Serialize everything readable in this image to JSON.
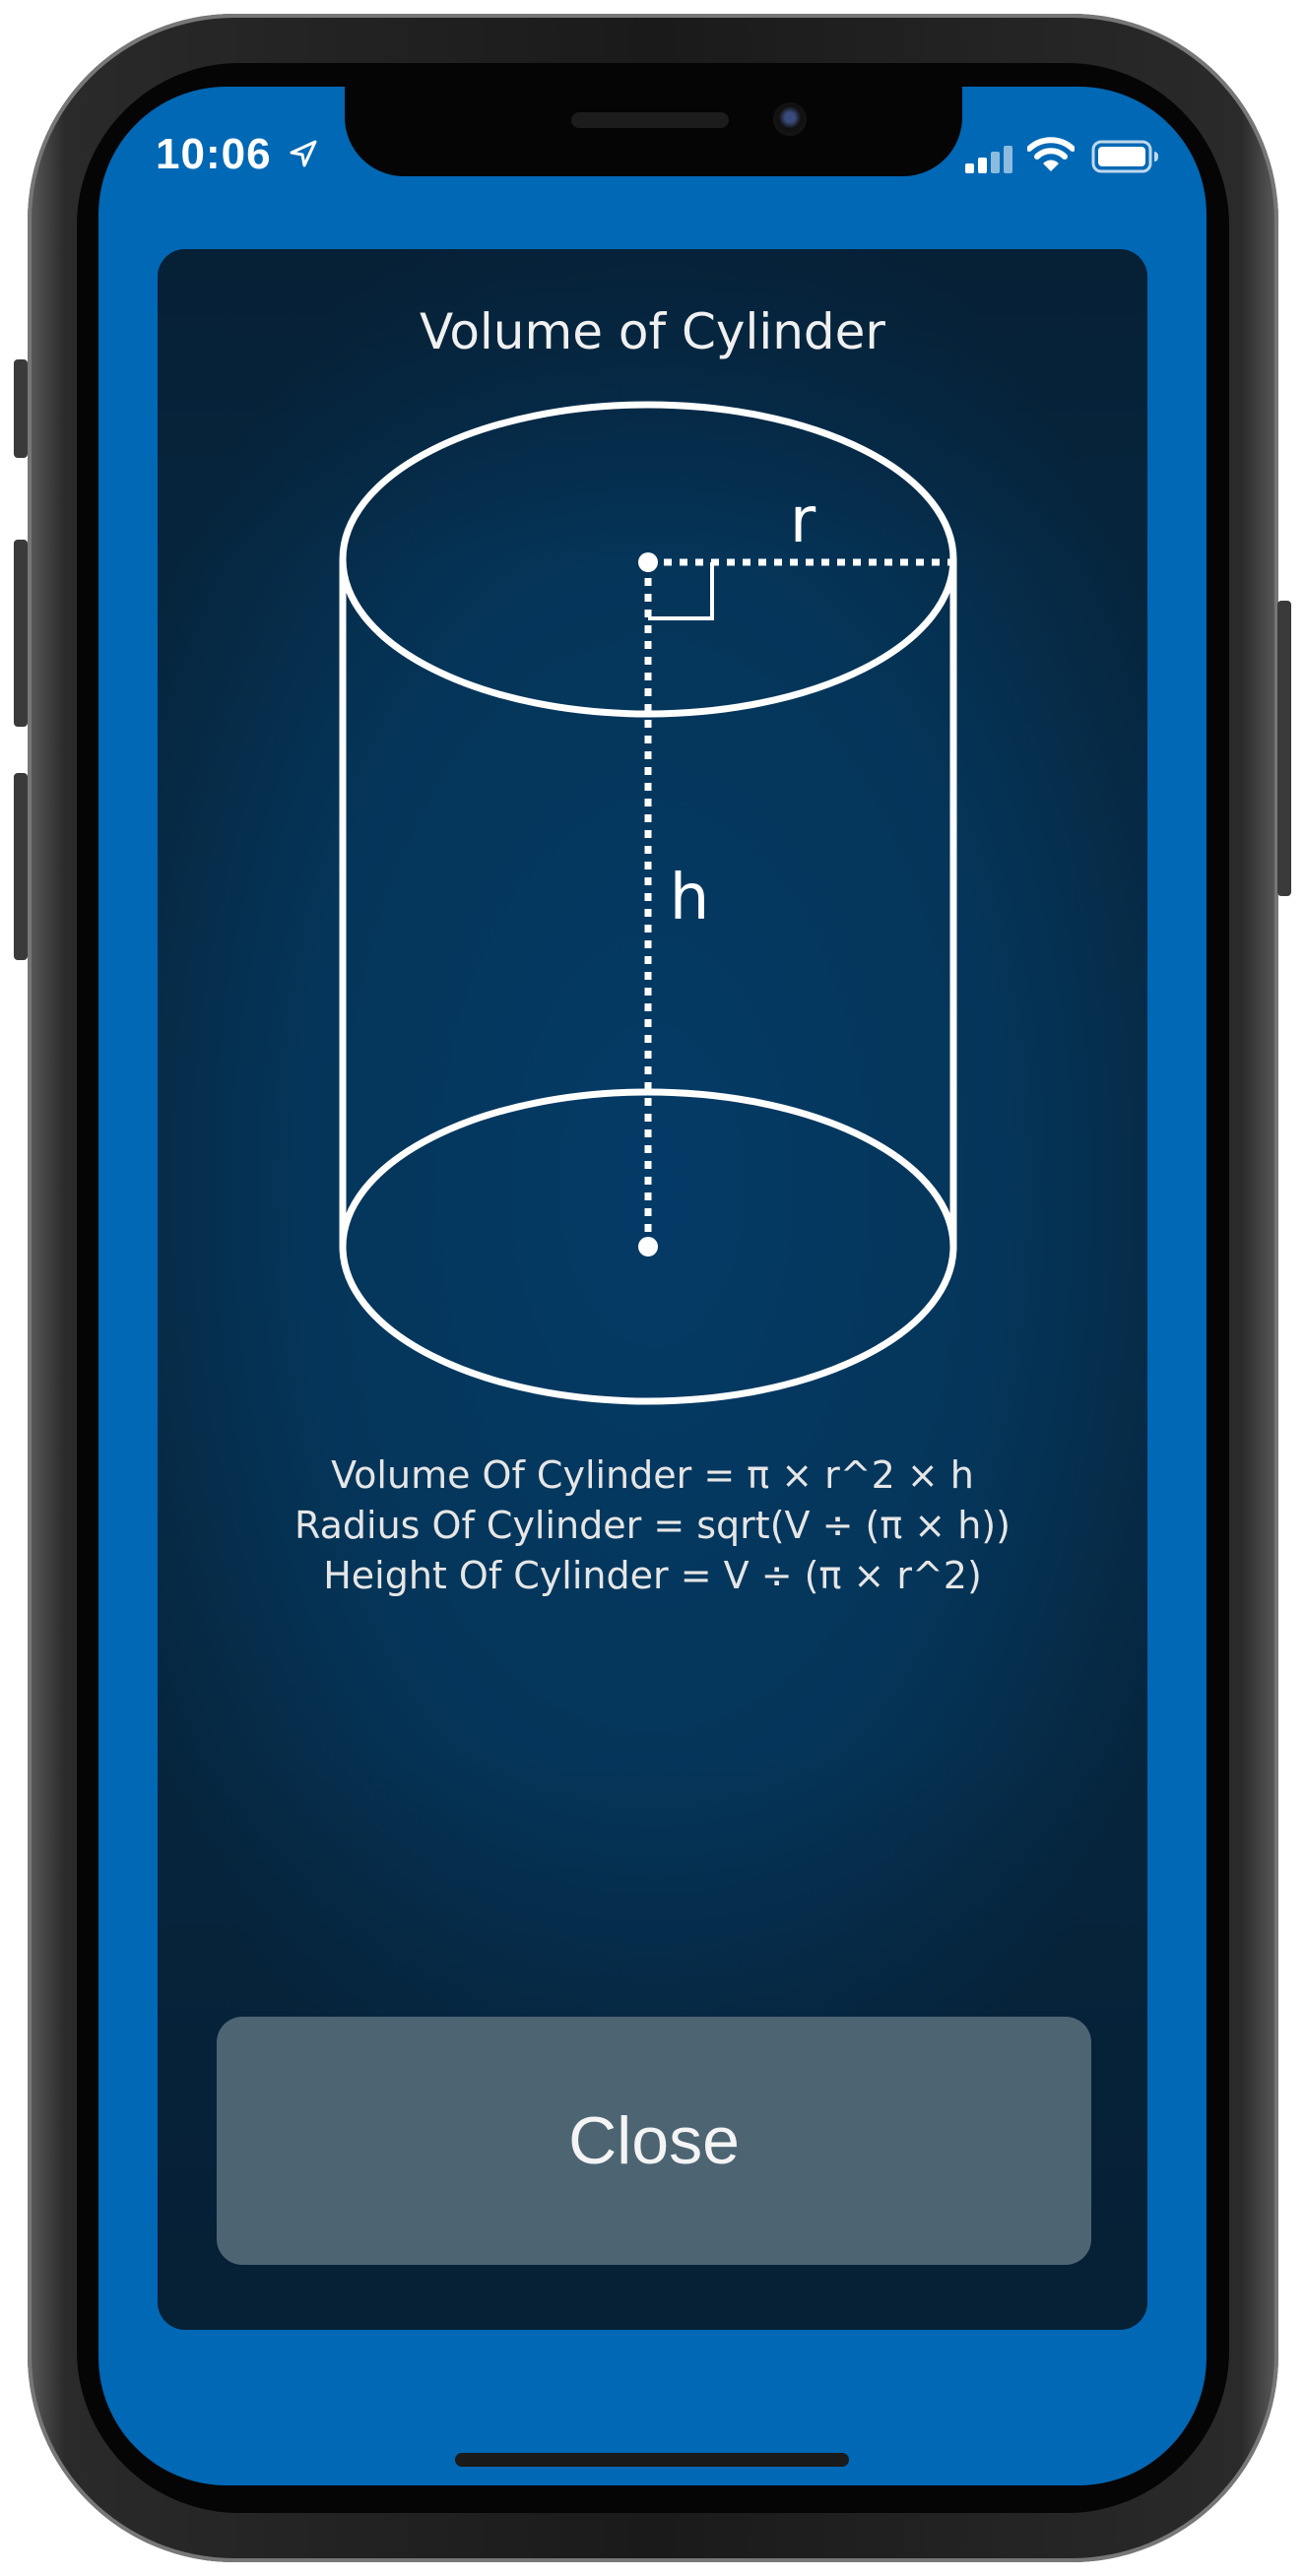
{
  "status_bar": {
    "time": "10:06",
    "icons": [
      "location-arrow-icon",
      "cellular-signal-icon",
      "wifi-icon",
      "battery-icon"
    ]
  },
  "card": {
    "title": "Volume of Cylinder",
    "diagram": {
      "radius_label": "r",
      "height_label": "h"
    },
    "formulas": [
      "Volume Of Cylinder = π × r^2 × h",
      "Radius Of Cylinder = sqrt(V ÷ (π × h))",
      "Height Of Cylinder = V ÷ (π × r^2)"
    ],
    "close_label": "Close"
  },
  "colors": {
    "screen_background": "#0068b5",
    "card_background": "#053559",
    "button_background": "#4d6473",
    "stroke": "#ffffff"
  }
}
